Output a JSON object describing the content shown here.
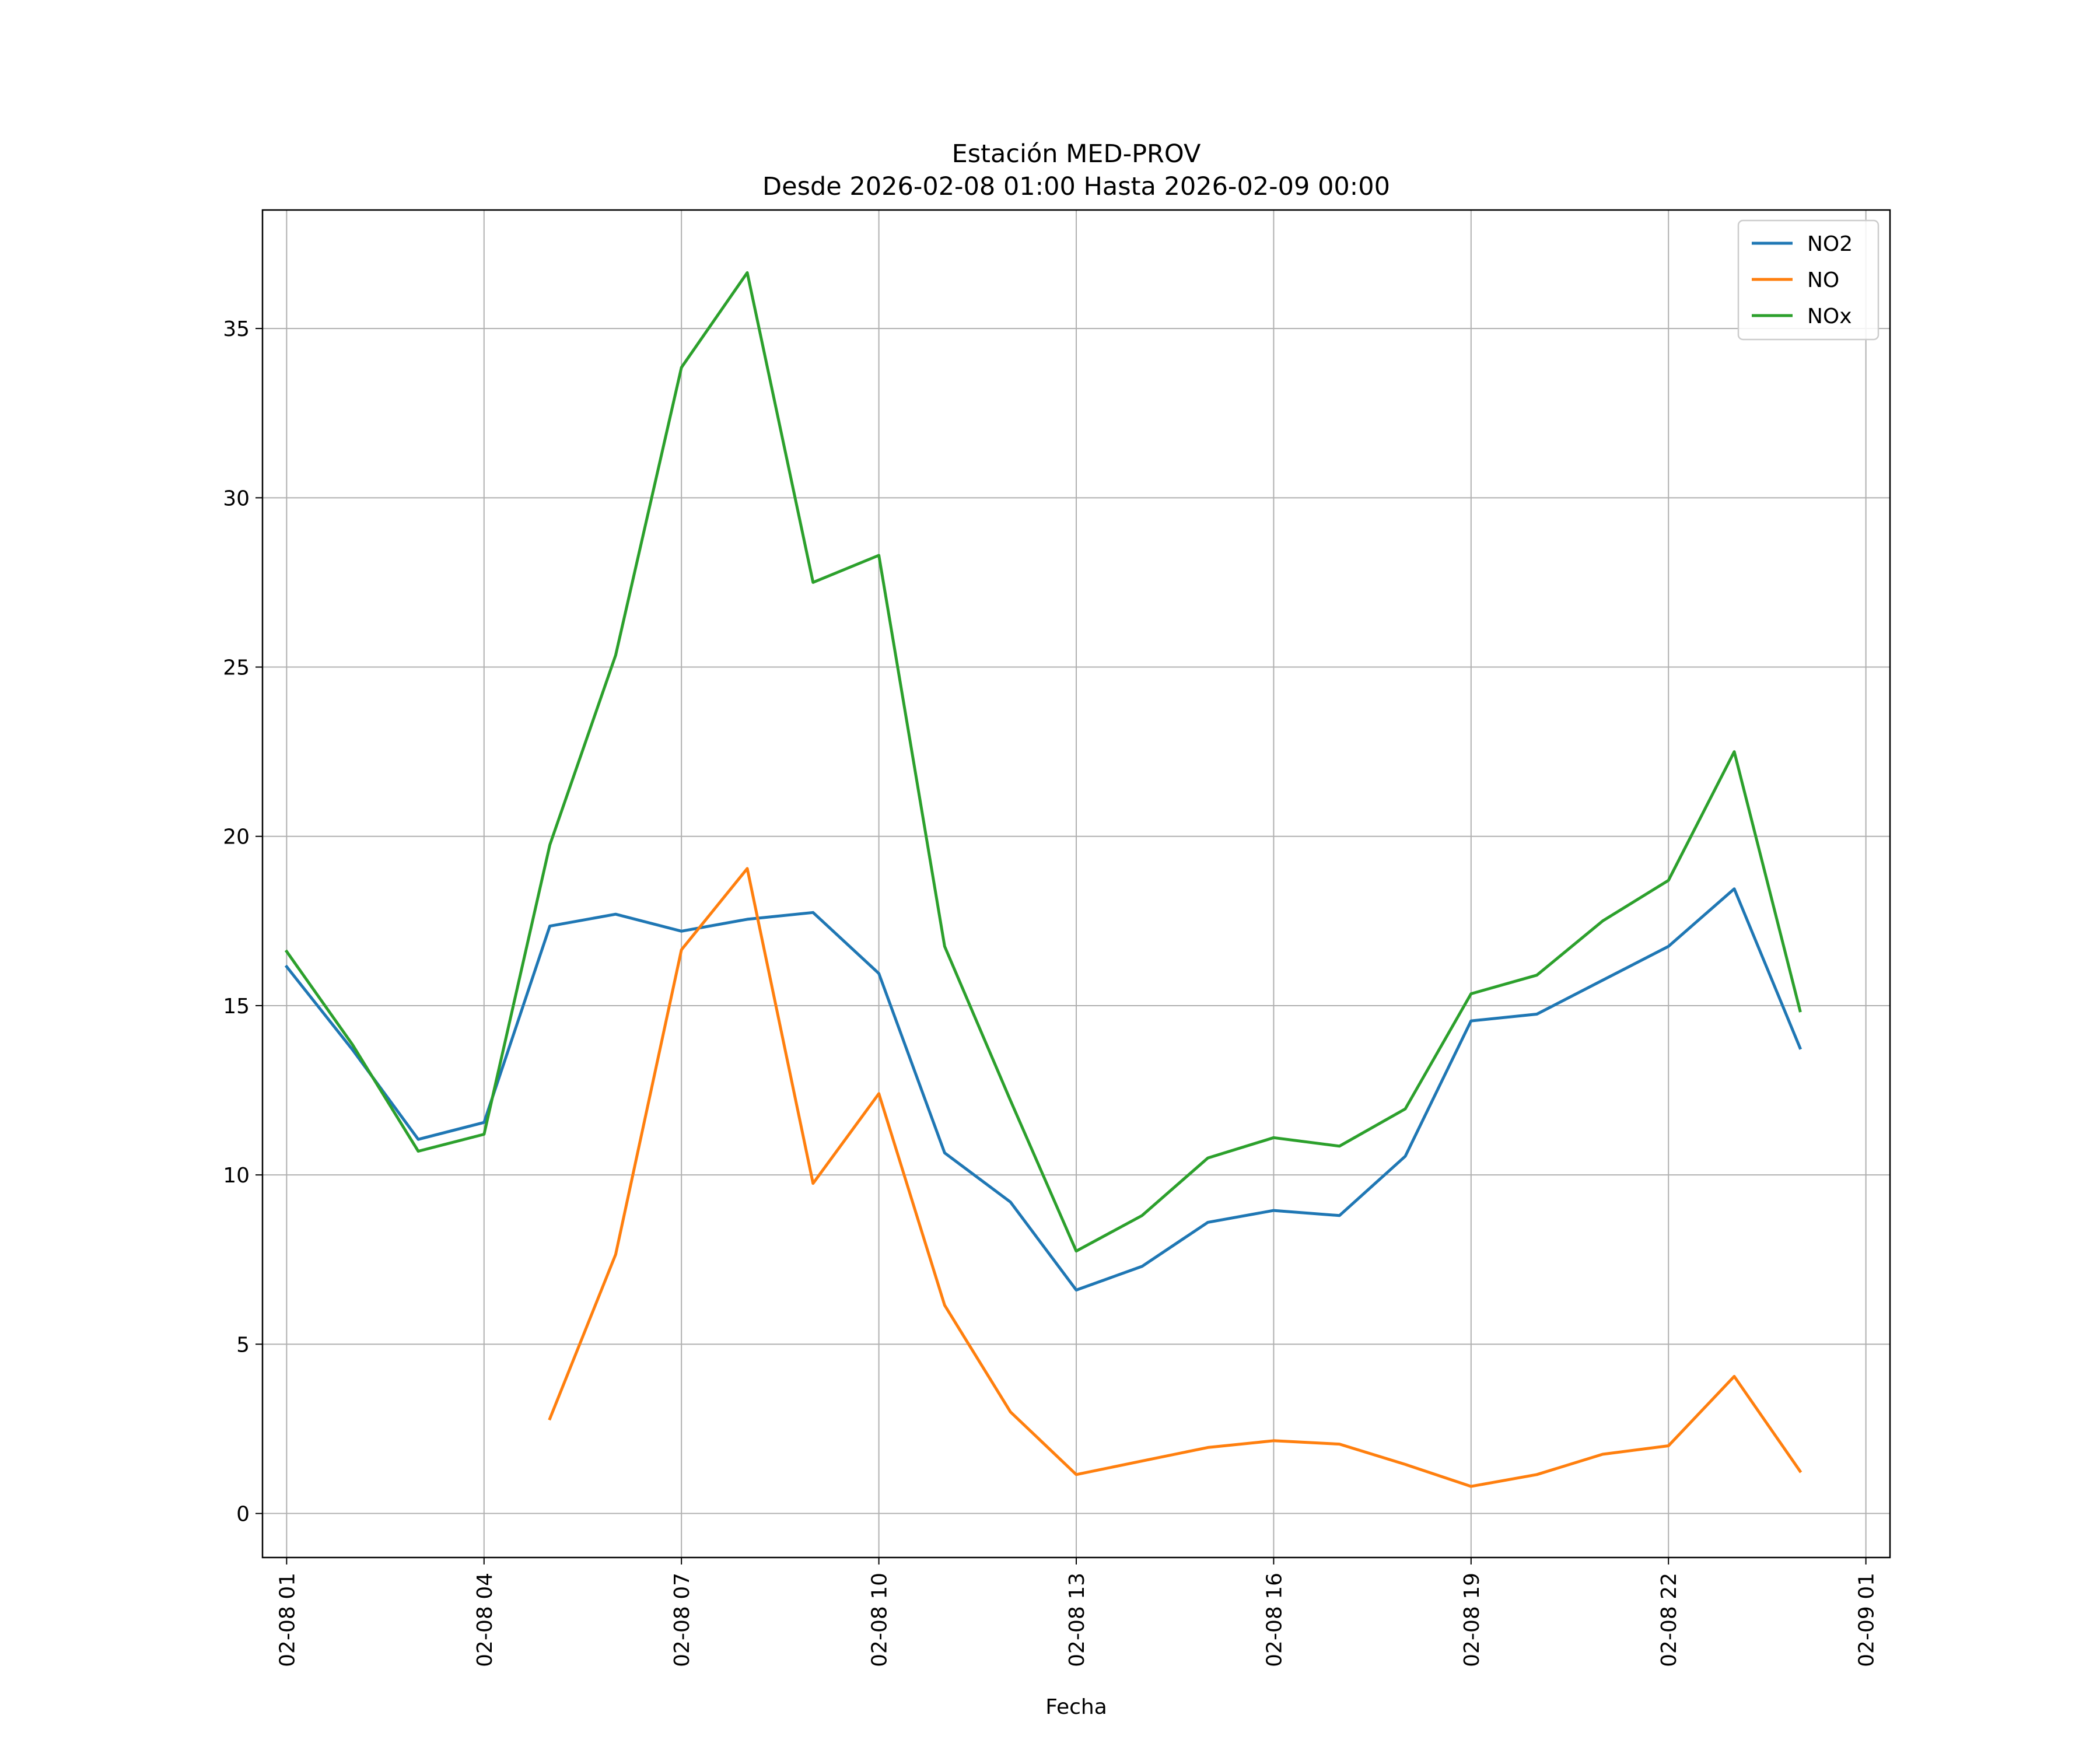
{
  "chart_data": {
    "type": "line",
    "title": "Estación MED-PROV",
    "subtitle": "Desde 2026-02-08 01:00 Hasta 2026-02-09 00:00",
    "xlabel": "Fecha",
    "ylabel": "",
    "ylim": [
      -1.3,
      38.5
    ],
    "yticks": [
      0,
      5,
      10,
      15,
      20,
      25,
      30,
      35
    ],
    "xlim": [
      "2026-02-08 00:38",
      "2026-02-09 01:22"
    ],
    "xticks": [
      "2026-02-08 01:00",
      "2026-02-08 04:00",
      "2026-02-08 07:00",
      "2026-02-08 10:00",
      "2026-02-08 13:00",
      "2026-02-08 16:00",
      "2026-02-08 19:00",
      "2026-02-08 22:00",
      "2026-02-09 01:00"
    ],
    "xtick_labels": [
      "02-08 01",
      "02-08 04",
      "02-08 07",
      "02-08 10",
      "02-08 13",
      "02-08 16",
      "02-08 19",
      "02-08 22",
      "02-09 01"
    ],
    "grid": true,
    "legend_position": "top-right",
    "x": [
      "2026-02-08 01:00",
      "2026-02-08 02:00",
      "2026-02-08 03:00",
      "2026-02-08 04:00",
      "2026-02-08 05:00",
      "2026-02-08 06:00",
      "2026-02-08 07:00",
      "2026-02-08 08:00",
      "2026-02-08 09:00",
      "2026-02-08 10:00",
      "2026-02-08 11:00",
      "2026-02-08 12:00",
      "2026-02-08 13:00",
      "2026-02-08 14:00",
      "2026-02-08 15:00",
      "2026-02-08 16:00",
      "2026-02-08 17:00",
      "2026-02-08 18:00",
      "2026-02-08 19:00",
      "2026-02-08 20:00",
      "2026-02-08 21:00",
      "2026-02-08 22:00",
      "2026-02-08 23:00",
      "2026-02-09 00:00"
    ],
    "series": [
      {
        "name": "NO2",
        "color": "#1f77b4",
        "values": [
          16.15,
          13.7,
          11.05,
          11.55,
          17.35,
          17.7,
          17.2,
          17.55,
          17.75,
          15.95,
          10.65,
          9.2,
          6.6,
          7.3,
          8.6,
          8.95,
          8.8,
          10.55,
          14.55,
          14.75,
          15.75,
          16.75,
          18.45,
          13.75
        ]
      },
      {
        "name": "NO",
        "color": "#ff7f0e",
        "values": [
          null,
          null,
          null,
          null,
          2.8,
          7.65,
          16.65,
          19.05,
          9.75,
          12.4,
          6.15,
          3.0,
          1.15,
          1.55,
          1.95,
          2.15,
          2.05,
          1.45,
          0.8,
          1.15,
          1.75,
          2.0,
          4.05,
          1.25
        ]
      },
      {
        "name": "NOx",
        "color": "#2ca02c",
        "values": [
          16.6,
          13.85,
          10.7,
          11.2,
          19.75,
          25.35,
          33.85,
          36.65,
          27.5,
          28.3,
          16.75,
          12.2,
          7.75,
          8.8,
          10.5,
          11.1,
          10.85,
          11.95,
          15.35,
          15.9,
          17.5,
          18.7,
          22.5,
          14.85
        ]
      }
    ]
  }
}
